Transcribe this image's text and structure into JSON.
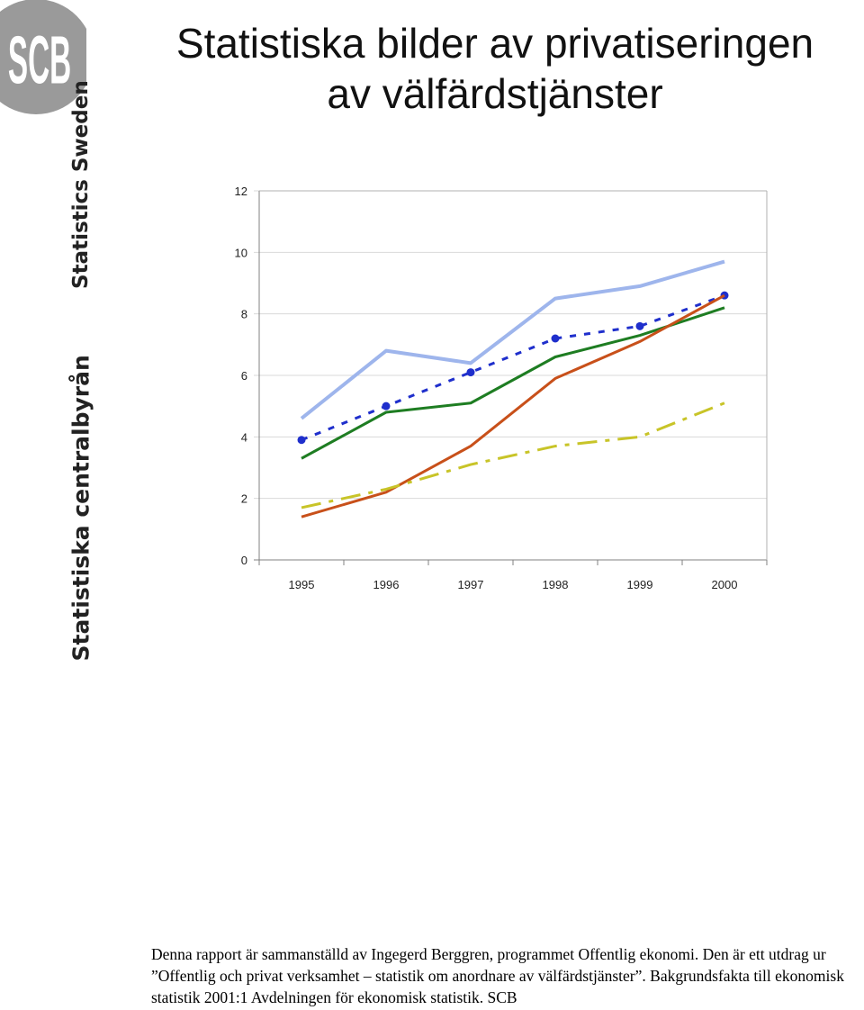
{
  "logo": {
    "text": "SCB",
    "color": "#9a9a9a"
  },
  "title": {
    "line1": "Statistiska bilder av privatiseringen",
    "line2": "av välfärdstjänster"
  },
  "side_text": {
    "swedish": "Statistiska centralbyrån",
    "english": "Statistics Sweden"
  },
  "chart_data": {
    "type": "line",
    "title": "",
    "xlabel": "",
    "ylabel": "",
    "x": [
      "1995",
      "1996",
      "1997",
      "1998",
      "1999",
      "2000"
    ],
    "ylim": [
      0,
      12
    ],
    "yticks": [
      0,
      2,
      4,
      6,
      8,
      10,
      12
    ],
    "grid": true,
    "legend": "none",
    "series": [
      {
        "values": [
          4.6,
          6.8,
          6.4,
          8.5,
          8.9,
          9.7
        ],
        "color": "#9eb5ec",
        "style": "solid",
        "markers": false
      },
      {
        "values": [
          3.9,
          5.0,
          6.1,
          7.2,
          7.6,
          8.6
        ],
        "color": "#1f2fcc",
        "style": "dotted",
        "markers": true
      },
      {
        "values": [
          3.3,
          4.8,
          5.1,
          6.6,
          7.3,
          8.2
        ],
        "color": "#1e7d22",
        "style": "solid",
        "markers": false
      },
      {
        "values": [
          1.4,
          2.2,
          3.7,
          5.9,
          7.1,
          8.6
        ],
        "color": "#c8501a",
        "style": "solid",
        "markers": false
      },
      {
        "values": [
          1.7,
          2.3,
          3.1,
          3.7,
          4.0,
          5.1
        ],
        "color": "#c8c428",
        "style": "dashdot",
        "markers": false
      }
    ]
  },
  "footer": {
    "text": "Denna rapport är sammanställd av Ingegerd Berggren, programmet Offentlig ekonomi. Den är ett utdrag ur ”Offentlig och privat verksamhet – statistik om anordnare av välfärdstjänster”. Bakgrundsfakta till ekonomisk statistik 2001:1 Avdelningen för ekonomisk statistik. SCB"
  }
}
